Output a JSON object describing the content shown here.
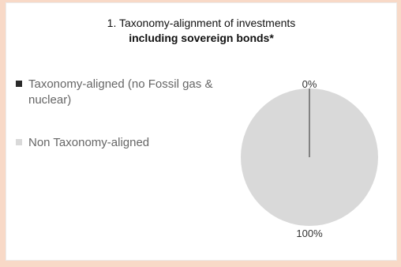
{
  "colors": {
    "aligned": "#2a2a2a",
    "non_aligned": "#d9d9d9",
    "frame_bg": "#f8d9c7",
    "label": "#666666"
  },
  "chart_data": {
    "type": "pie",
    "title": "1. Taxonomy-alignment of investments",
    "subtitle": "including sovereign bonds*",
    "legend": "left",
    "slices": [
      {
        "label": "Taxonomy-aligned (no Fossil gas & nuclear)",
        "value": 0,
        "display": "0%"
      },
      {
        "label": "Non Taxonomy-aligned",
        "value": 100,
        "display": "100%"
      }
    ]
  }
}
